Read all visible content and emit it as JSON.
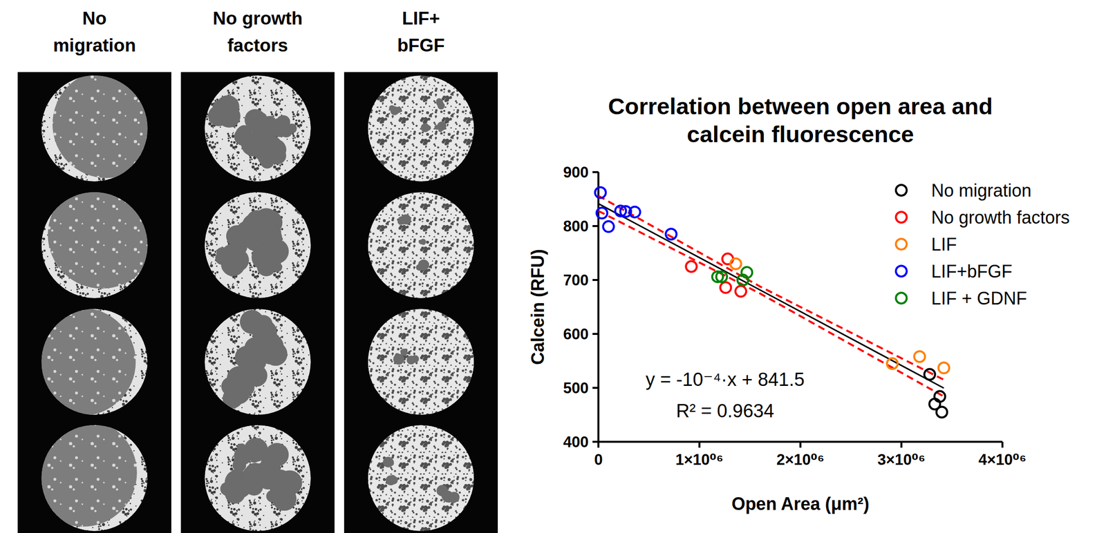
{
  "image_panels": {
    "titles": [
      "No migration",
      "No growth factors",
      "LIF+bFGF"
    ]
  },
  "chart_data": {
    "type": "scatter",
    "title": "Correlation between open area and calcein fluorescence",
    "x_label": "Open Area (μm²)",
    "y_label": "Calcein (RFU)",
    "xlim": [
      0,
      4000000
    ],
    "ylim": [
      400,
      900
    ],
    "xticks": [
      0,
      {
        "value": 1000000,
        "label": "1×10⁰⁶"
      },
      {
        "value": 2000000,
        "label": "2×10⁰⁶"
      },
      {
        "value": 3000000,
        "label": "3×10⁰⁶"
      },
      {
        "value": 4000000,
        "label": "4×10⁰⁶"
      }
    ],
    "yticks": [
      400,
      500,
      600,
      700,
      800,
      900
    ],
    "grid": false,
    "legend": "top-right",
    "annotations": [
      "y = -10⁻⁴·x + 841.5",
      "R² = 0.9634"
    ],
    "series": [
      {
        "name": "No migration",
        "color": "#000000",
        "type": "scatter",
        "marker": "circle",
        "x": [
          3280000,
          3380000,
          3330000,
          3400000
        ],
        "values": [
          525,
          484,
          470,
          455
        ]
      },
      {
        "name": "No growth factors",
        "color": "#ff0000",
        "type": "scatter",
        "marker": "circle",
        "x": [
          920000,
          1280000,
          1260000,
          1410000
        ],
        "values": [
          725,
          739,
          686,
          679
        ]
      },
      {
        "name": "LIF",
        "color": "#ff8000",
        "type": "scatter",
        "marker": "circle",
        "x": [
          1360000,
          2910000,
          3180000,
          3420000
        ],
        "values": [
          730,
          545,
          558,
          537
        ]
      },
      {
        "name": "LIF+bFGF",
        "color": "#0000ff",
        "type": "scatter",
        "marker": "circle",
        "x": [
          20000,
          35000,
          100000,
          220000,
          270000,
          360000,
          720000
        ],
        "values": [
          862,
          824,
          799,
          828,
          827,
          826,
          785
        ]
      },
      {
        "name": "LIF + GDNF",
        "color": "#008000",
        "type": "scatter",
        "marker": "circle",
        "x": [
          1180000,
          1220000,
          1470000,
          1430000
        ],
        "values": [
          706,
          706,
          714,
          700
        ]
      },
      {
        "color": "#000000",
        "type": "line",
        "line_style": "solid",
        "x": [
          0,
          3420000
        ],
        "values": [
          841.5,
          499.5
        ]
      },
      {
        "color": "#ff0000",
        "type": "line",
        "line_style": "dashed",
        "x": [
          0,
          1600000,
          3420000
        ],
        "values": [
          856,
          688,
          515
        ]
      },
      {
        "color": "#ff0000",
        "type": "line",
        "line_style": "dashed",
        "x": [
          0,
          1600000,
          3420000
        ],
        "values": [
          828,
          675,
          484
        ]
      }
    ]
  }
}
